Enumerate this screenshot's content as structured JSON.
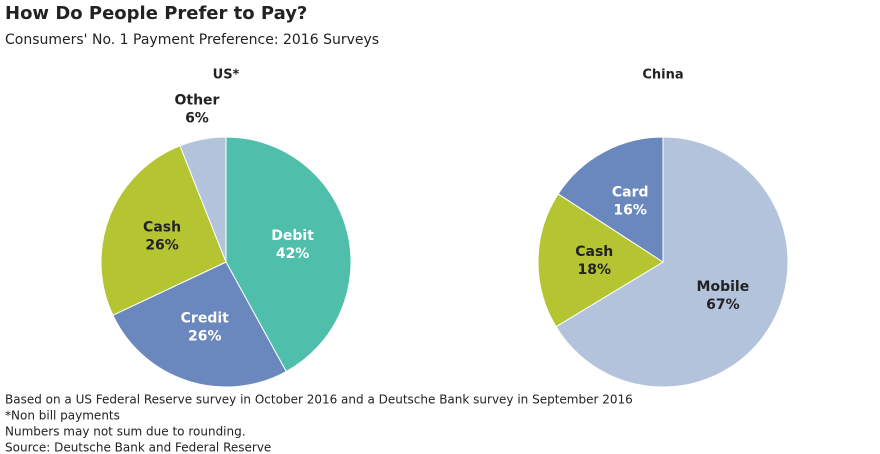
{
  "header": {
    "title": "How Do People Prefer to Pay?",
    "subtitle": "Consumers' No. 1 Payment Preference: 2016 Surveys"
  },
  "chart_data": [
    {
      "type": "pie",
      "title": "US*",
      "categories": [
        "Debit",
        "Credit",
        "Cash",
        "Other"
      ],
      "values": [
        42,
        26,
        26,
        6
      ],
      "value_labels": [
        "42%",
        "26%",
        "26%",
        "6%"
      ],
      "colors": [
        "#4fbfac",
        "#6a88bd",
        "#b4c531",
        "#b3c3dc"
      ]
    },
    {
      "type": "pie",
      "title": "China",
      "categories": [
        "Mobile",
        "Cash",
        "Card"
      ],
      "values": [
        67,
        18,
        16
      ],
      "value_labels": [
        "67%",
        "18%",
        "16%"
      ],
      "colors": [
        "#b3c3dc",
        "#b4c531",
        "#6a88bd"
      ]
    }
  ],
  "notes": [
    "Based on a US Federal Reserve survey in October 2016 and a Deutsche Bank survey in September 2016",
    "*Non bill payments",
    "Numbers may not sum due to rounding.",
    "Source: Deutsche Bank and Federal Reserve"
  ]
}
